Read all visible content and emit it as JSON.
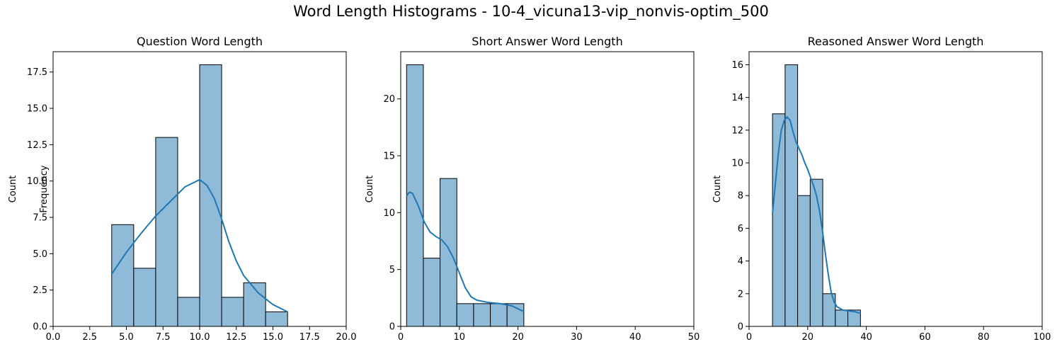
{
  "figure": {
    "suptitle": "Word Length Histograms - 10-4_vicuna13-vip_nonvis-optim_500"
  },
  "colors": {
    "bar_fill": "#8fbbd9",
    "bar_edge": "#000000",
    "kde_line": "#1f77b4"
  },
  "chart_data": [
    {
      "type": "bar",
      "title": "Question Word Length",
      "xlabel": "",
      "ylabel": "Count",
      "ylabel2": "Frequency",
      "xlim": [
        0,
        20
      ],
      "ylim": [
        0,
        18.9
      ],
      "xticks": [
        0,
        2.5,
        5,
        7.5,
        10,
        12.5,
        15,
        17.5,
        20
      ],
      "xtick_labels": [
        "0.0",
        "2.5",
        "5.0",
        "7.5",
        "10.0",
        "12.5",
        "15.0",
        "17.5",
        "20.0"
      ],
      "yticks": [
        0,
        2.5,
        5,
        7.5,
        10,
        12.5,
        15,
        17.5
      ],
      "ytick_labels": [
        "0.0",
        "2.5",
        "5.0",
        "7.5",
        "10.0",
        "12.5",
        "15.0",
        "17.5"
      ],
      "bins": [
        {
          "x0": 4.0,
          "x1": 5.5,
          "value": 7
        },
        {
          "x0": 5.5,
          "x1": 7.0,
          "value": 4
        },
        {
          "x0": 7.0,
          "x1": 8.5,
          "value": 13
        },
        {
          "x0": 8.5,
          "x1": 10.0,
          "value": 2
        },
        {
          "x0": 10.0,
          "x1": 11.5,
          "value": 18
        },
        {
          "x0": 11.5,
          "x1": 13.0,
          "value": 2
        },
        {
          "x0": 13.0,
          "x1": 14.5,
          "value": 3
        },
        {
          "x0": 14.5,
          "x1": 16.0,
          "value": 1
        }
      ],
      "kde": [
        [
          4.0,
          3.6
        ],
        [
          5.0,
          5.1
        ],
        [
          6.0,
          6.4
        ],
        [
          7.0,
          7.6
        ],
        [
          8.0,
          8.6
        ],
        [
          9.0,
          9.6
        ],
        [
          10.0,
          10.1
        ],
        [
          10.5,
          9.7
        ],
        [
          11.0,
          8.8
        ],
        [
          11.5,
          7.4
        ],
        [
          12.0,
          5.8
        ],
        [
          12.5,
          4.5
        ],
        [
          13.0,
          3.5
        ],
        [
          14.0,
          2.3
        ],
        [
          15.0,
          1.5
        ],
        [
          16.0,
          1.0
        ]
      ]
    },
    {
      "type": "bar",
      "title": "Short Answer Word Length",
      "xlabel": "",
      "ylabel": "Count",
      "xlim": [
        0,
        50
      ],
      "ylim": [
        0,
        24.15
      ],
      "xticks": [
        0,
        10,
        20,
        30,
        40,
        50
      ],
      "xtick_labels": [
        "0",
        "10",
        "20",
        "30",
        "40",
        "50"
      ],
      "yticks": [
        0,
        5,
        10,
        15,
        20
      ],
      "ytick_labels": [
        "0",
        "5",
        "10",
        "15",
        "20"
      ],
      "bins": [
        {
          "x0": 1.0,
          "x1": 3.86,
          "value": 23
        },
        {
          "x0": 3.86,
          "x1": 6.71,
          "value": 6
        },
        {
          "x0": 6.71,
          "x1": 9.57,
          "value": 13
        },
        {
          "x0": 9.57,
          "x1": 12.43,
          "value": 2
        },
        {
          "x0": 12.43,
          "x1": 15.29,
          "value": 2
        },
        {
          "x0": 15.29,
          "x1": 18.14,
          "value": 2
        },
        {
          "x0": 18.14,
          "x1": 21.0,
          "value": 2
        }
      ],
      "kde": [
        [
          1.0,
          11.5
        ],
        [
          1.5,
          11.8
        ],
        [
          2.0,
          11.7
        ],
        [
          3.0,
          10.6
        ],
        [
          4.0,
          9.2
        ],
        [
          5.0,
          8.3
        ],
        [
          6.0,
          7.9
        ],
        [
          7.0,
          7.6
        ],
        [
          8.0,
          7.0
        ],
        [
          9.0,
          6.0
        ],
        [
          10.0,
          4.7
        ],
        [
          11.0,
          3.4
        ],
        [
          12.0,
          2.6
        ],
        [
          13.0,
          2.3
        ],
        [
          15.0,
          2.1
        ],
        [
          17.0,
          2.0
        ],
        [
          19.0,
          1.8
        ],
        [
          21.0,
          1.3
        ]
      ]
    },
    {
      "type": "bar",
      "title": "Reasoned Answer Word Length",
      "xlabel": "",
      "ylabel": "Count",
      "xlim": [
        0,
        100
      ],
      "ylim": [
        0,
        16.8
      ],
      "xticks": [
        0,
        20,
        40,
        60,
        80,
        100
      ],
      "xtick_labels": [
        "0",
        "20",
        "40",
        "60",
        "80",
        "100"
      ],
      "yticks": [
        0,
        2,
        4,
        6,
        8,
        10,
        12,
        14,
        16
      ],
      "ytick_labels": [
        "0",
        "2",
        "4",
        "6",
        "8",
        "10",
        "12",
        "14",
        "16"
      ],
      "bins": [
        {
          "x0": 8.0,
          "x1": 12.29,
          "value": 13
        },
        {
          "x0": 12.29,
          "x1": 16.57,
          "value": 16
        },
        {
          "x0": 16.57,
          "x1": 20.86,
          "value": 8
        },
        {
          "x0": 20.86,
          "x1": 25.14,
          "value": 9
        },
        {
          "x0": 25.14,
          "x1": 29.43,
          "value": 2
        },
        {
          "x0": 29.43,
          "x1": 33.71,
          "value": 1
        },
        {
          "x0": 33.71,
          "x1": 38.0,
          "value": 1
        }
      ],
      "kde": [
        [
          8.0,
          6.9
        ],
        [
          9.0,
          8.8
        ],
        [
          10.0,
          10.6
        ],
        [
          11.0,
          12.0
        ],
        [
          12.0,
          12.6
        ],
        [
          13.0,
          12.8
        ],
        [
          14.0,
          12.6
        ],
        [
          15.0,
          11.9
        ],
        [
          16.0,
          11.3
        ],
        [
          17.0,
          10.9
        ],
        [
          18.0,
          10.5
        ],
        [
          19.0,
          10.0
        ],
        [
          20.0,
          9.6
        ],
        [
          21.0,
          9.1
        ],
        [
          22.0,
          8.6
        ],
        [
          23.0,
          8.0
        ],
        [
          24.0,
          7.1
        ],
        [
          25.0,
          5.9
        ],
        [
          26.0,
          4.5
        ],
        [
          27.0,
          3.2
        ],
        [
          28.0,
          2.1
        ],
        [
          29.0,
          1.5
        ],
        [
          30.0,
          1.2
        ],
        [
          32.0,
          1.0
        ],
        [
          34.0,
          0.95
        ],
        [
          36.0,
          0.9
        ],
        [
          38.0,
          0.8
        ]
      ]
    }
  ]
}
